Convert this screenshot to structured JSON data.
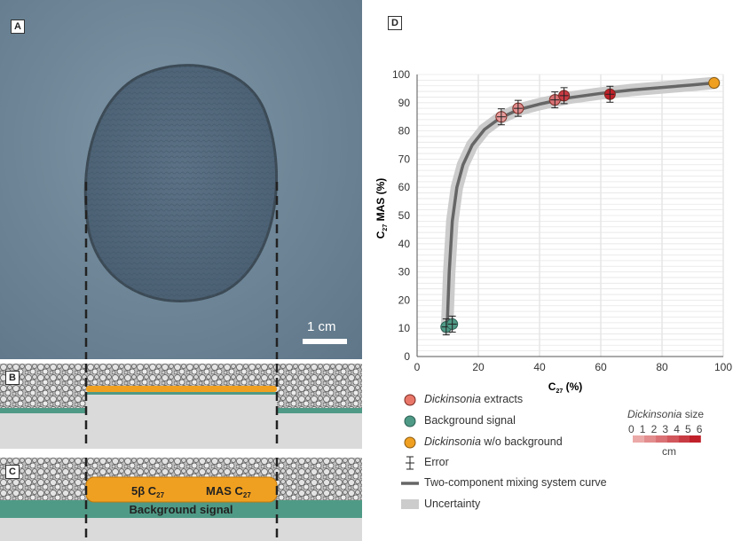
{
  "panels": {
    "a": {
      "label": "A",
      "scale_text": "1 cm"
    },
    "b": {
      "label": "B"
    },
    "c": {
      "label": "C",
      "layer_left": "5β C",
      "layer_left_sub": "27",
      "layer_right": "MAS C",
      "layer_right_sub": "27",
      "background_label": "Background signal"
    },
    "d": {
      "label": "D"
    }
  },
  "colors": {
    "background_signal": "#4f9a86",
    "sediment_fill": "#e8e8e8",
    "orange": "#f0a020",
    "curve": "#666666",
    "uncertainty": "#cccccc",
    "dickinsonia_light": "#f4c4c0",
    "dickinsonia_dark": "#c0202a"
  },
  "chart_data": {
    "type": "scatter",
    "xlabel": "C",
    "xlabel_sub": "27",
    "xlabel_unit": " (%)",
    "ylabel": "C",
    "ylabel_sub": "27",
    "ylabel_unit": " MAS (%)",
    "xlim": [
      0,
      100
    ],
    "ylim": [
      0,
      100
    ],
    "x_ticks": [
      0,
      20,
      40,
      60,
      80,
      100
    ],
    "y_ticks": [
      0,
      10,
      20,
      30,
      40,
      50,
      60,
      70,
      80,
      90,
      100
    ],
    "grid": true,
    "series": [
      {
        "name": "Dickinsonia extracts",
        "x": [
          27.5,
          33,
          45,
          48,
          63
        ],
        "y": [
          85,
          88,
          91,
          92.5,
          93
        ],
        "size_cm": [
          1.5,
          2,
          3,
          5,
          6
        ]
      },
      {
        "name": "Background signal",
        "x": [
          9.5,
          11.5
        ],
        "y": [
          10.5,
          11.5
        ]
      },
      {
        "name": "Dickinsonia w/o background",
        "x": [
          97
        ],
        "y": [
          97
        ]
      }
    ],
    "curve": {
      "x": [
        9.8,
        10.5,
        11.5,
        13,
        15,
        18,
        22,
        27,
        33,
        40,
        50,
        60,
        70,
        80,
        90,
        97
      ],
      "y": [
        10,
        30,
        48,
        60,
        68,
        75,
        80.5,
        84.5,
        87.5,
        89.5,
        91.8,
        93.3,
        94.5,
        95.4,
        96.3,
        97
      ]
    },
    "legend": [
      {
        "label_italic": "Dickinsonia",
        "label": " extracts"
      },
      {
        "label_italic": "",
        "label": "Background signal"
      },
      {
        "label_italic": "Dickinsonia",
        "label": " w/o background"
      },
      {
        "label_italic": "",
        "label": "Error"
      },
      {
        "label_italic": "",
        "label": "Two-component mixing system curve"
      },
      {
        "label_italic": "",
        "label": "Uncertainty"
      }
    ],
    "size_scale": {
      "title_italic": "Dickinsonia",
      "title": " size",
      "ticks": [
        "0",
        "1",
        "2",
        "3",
        "4",
        "5",
        "6"
      ],
      "unit": "cm"
    }
  }
}
